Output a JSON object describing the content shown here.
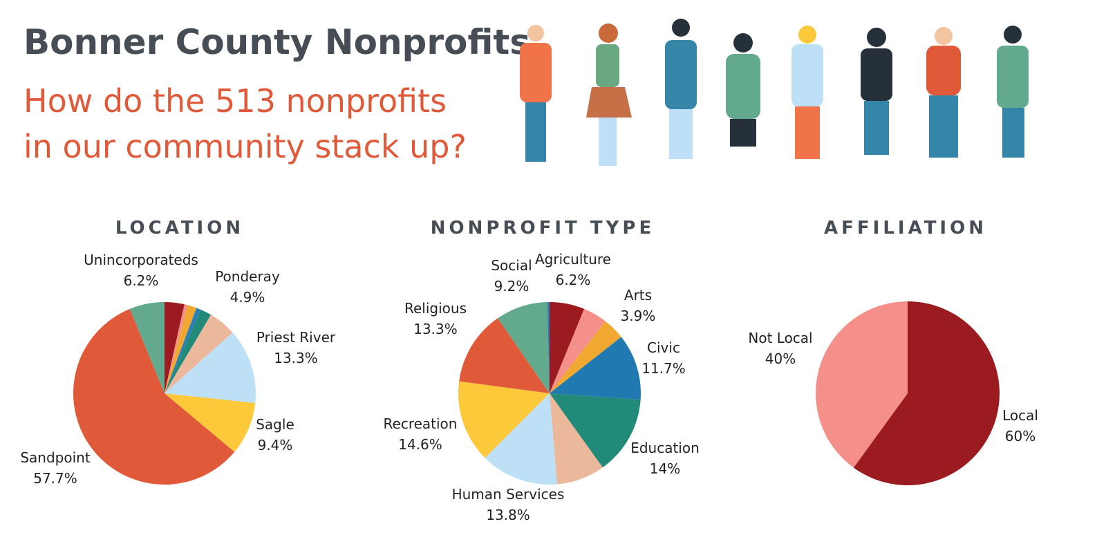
{
  "title": "Bonner County Nonprofits",
  "subtitle": [
    "How do the 513 nonprofits",
    "in our community stack up?"
  ],
  "chart_data": [
    {
      "type": "pie",
      "title": "LOCATION",
      "categories": [
        null,
        null,
        null,
        null,
        null,
        "Ponderay",
        "Priest River",
        "Sagle",
        "Sandpoint",
        "Unincorporateds"
      ],
      "values": [
        3.5,
        0.6,
        1.6,
        0.8,
        2.0,
        4.9,
        13.3,
        9.4,
        57.7,
        6.2
      ],
      "value_labels": [
        null,
        null,
        null,
        null,
        null,
        "4.9%",
        "13.3%",
        "9.4%",
        "57.7%",
        "6.2%"
      ],
      "colors": [
        "#9b1b20",
        "#f48f8a",
        "#f0a830",
        "#2c7fb8",
        "#218a78",
        "#ecb89c",
        "#bde0f7",
        "#fdc93a",
        "#e05a3a",
        "#62a98e"
      ]
    },
    {
      "type": "pie",
      "title": "NONPROFIT TYPE",
      "categories": [
        "Agriculture",
        null,
        "Arts",
        "Civic",
        "Education",
        null,
        "Human Services",
        "Recreation",
        "Religious",
        "Social",
        null
      ],
      "values": [
        6.2,
        4.3,
        3.9,
        11.7,
        14,
        8.6,
        13.8,
        14.6,
        13.3,
        9.2,
        0.4
      ],
      "value_labels": [
        "6.2%",
        null,
        "3.9%",
        "11.7%",
        "14%",
        null,
        "13.8%",
        "14.6%",
        "13.3%",
        "9.2%",
        null
      ],
      "colors": [
        "#9b1b20",
        "#f48f8a",
        "#f0a830",
        "#2079b0",
        "#218a78",
        "#ecb89c",
        "#bde0f7",
        "#fdc93a",
        "#e05a3a",
        "#62a98e",
        "#2c7fb8"
      ]
    },
    {
      "type": "pie",
      "title": "AFFILIATION",
      "categories": [
        "Local",
        "Not Local"
      ],
      "values": [
        60,
        40
      ],
      "value_labels": [
        "60%",
        "40%"
      ],
      "colors": [
        "#9b1b20",
        "#f48f8a"
      ]
    }
  ]
}
